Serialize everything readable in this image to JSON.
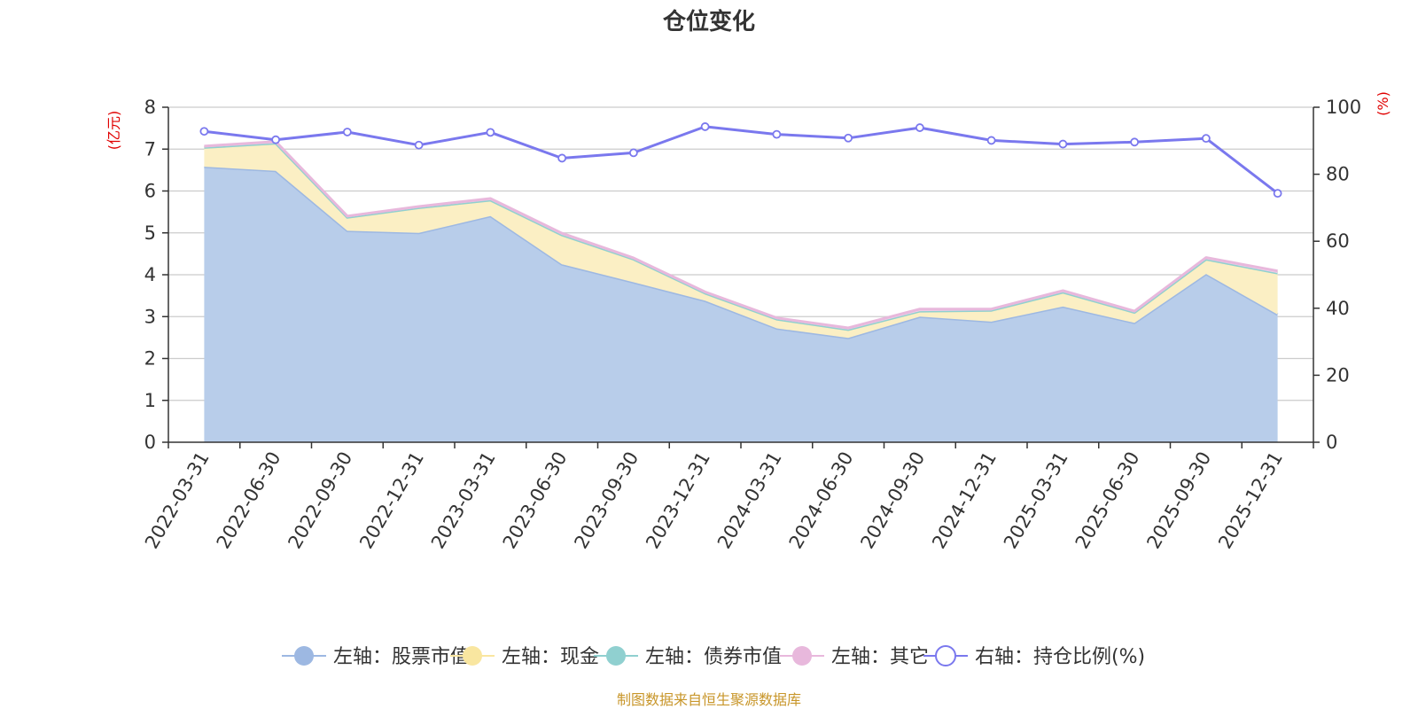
{
  "chart_data": {
    "type": "area",
    "title": "仓位变化",
    "left_axis": {
      "unit": "(亿元)",
      "ylim": [
        0,
        8
      ],
      "ticks": [
        0,
        1,
        2,
        3,
        4,
        5,
        6,
        7,
        8
      ]
    },
    "right_axis": {
      "unit": "(%)",
      "ylim": [
        0,
        100
      ],
      "ticks": [
        0,
        20,
        40,
        60,
        80,
        100
      ]
    },
    "categories": [
      "2022-03-31",
      "2022-06-30",
      "2022-09-30",
      "2022-12-31",
      "2023-03-31",
      "2023-06-30",
      "2023-09-30",
      "2023-12-31",
      "2024-03-31",
      "2024-06-30",
      "2024-09-30",
      "2024-12-31",
      "2025-03-31",
      "2025-06-30",
      "2025-09-30",
      "2025-12-31"
    ],
    "series": [
      {
        "name": "左轴：股票市值",
        "axis": "left",
        "stack": true,
        "color": "#9db8e2",
        "fill": "#b8cdea",
        "values": [
          6.58,
          6.48,
          5.05,
          5.0,
          5.4,
          4.25,
          3.82,
          3.38,
          2.72,
          2.49,
          3.0,
          2.88,
          3.24,
          2.85,
          4.02,
          3.05
        ]
      },
      {
        "name": "左轴：现金",
        "axis": "left",
        "stack": true,
        "color": "#f9e6a0",
        "fill": "#fbefc4",
        "values": [
          0.46,
          0.66,
          0.32,
          0.6,
          0.38,
          0.7,
          0.55,
          0.18,
          0.22,
          0.2,
          0.13,
          0.27,
          0.34,
          0.25,
          0.35,
          0.99
        ]
      },
      {
        "name": "左轴：债券市值",
        "axis": "left",
        "stack": true,
        "color": "#90d0d0",
        "fill": "#bfe6e6",
        "values": [
          0,
          0,
          0,
          0,
          0,
          0,
          0,
          0,
          0,
          0,
          0,
          0,
          0,
          0,
          0,
          0
        ]
      },
      {
        "name": "左轴：其它",
        "axis": "left",
        "stack": true,
        "color": "#e8b8dc",
        "fill": "#f0d0e8",
        "values": [
          0.03,
          0.04,
          0.03,
          0.03,
          0.04,
          0.04,
          0.03,
          0.03,
          0.03,
          0.04,
          0.05,
          0.03,
          0.04,
          0.03,
          0.04,
          0.05
        ]
      },
      {
        "name": "右轴：持仓比例(%)",
        "axis": "right",
        "stack": false,
        "color": "#7a78ee",
        "fill": "#ffffff",
        "values": [
          92.8,
          90.3,
          92.6,
          88.7,
          92.5,
          84.8,
          86.4,
          94.2,
          91.9,
          90.8,
          93.9,
          90.1,
          89.0,
          89.6,
          90.7,
          74.3
        ]
      }
    ],
    "legend_position": "bottom",
    "grid": true
  },
  "footer": {
    "source": "制图数据来自恒生聚源数据库"
  }
}
